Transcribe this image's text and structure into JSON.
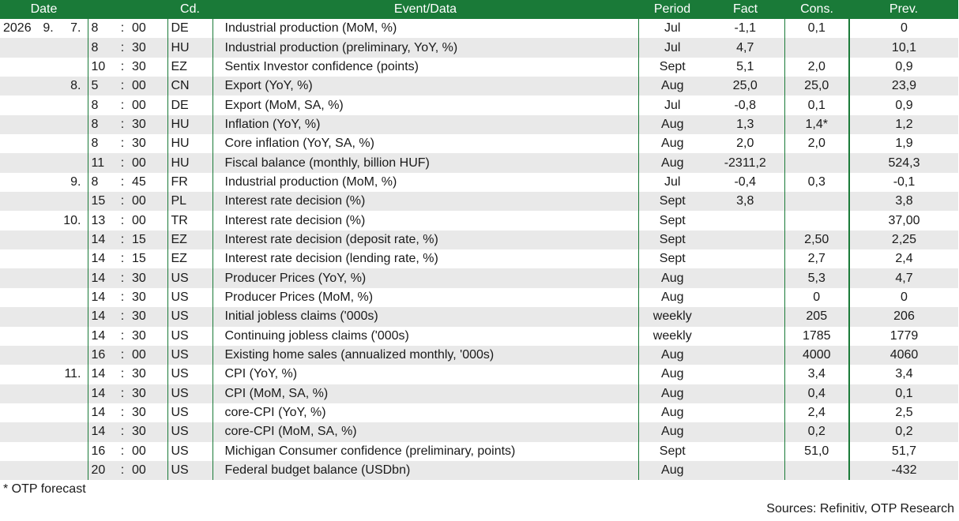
{
  "header": {
    "date": "Date",
    "cd": "Cd.",
    "event": "Event/Data",
    "period": "Period",
    "fact": "Fact",
    "cons": "Cons.",
    "prev": "Prev."
  },
  "rows": [
    {
      "year": "2026",
      "month": "9.",
      "day": "7.",
      "hour": "8",
      "sep": ":",
      "min": "00",
      "cd": "DE",
      "event": "Industrial production (MoM, %)",
      "period": "Jul",
      "fact": "-1,1",
      "cons": "0,1",
      "prev": "0"
    },
    {
      "year": "",
      "month": "",
      "day": "",
      "hour": "8",
      "sep": ":",
      "min": "30",
      "cd": "HU",
      "event": "Industrial production (preliminary, YoY, %)",
      "period": "Jul",
      "fact": "4,7",
      "cons": "",
      "prev": "10,1"
    },
    {
      "year": "",
      "month": "",
      "day": "",
      "hour": "10",
      "sep": ":",
      "min": "30",
      "cd": "EZ",
      "event": "Sentix Investor confidence (points)",
      "period": "Sept",
      "fact": "5,1",
      "cons": "2,0",
      "prev": "0,9"
    },
    {
      "year": "",
      "month": "",
      "day": "8.",
      "hour": "5",
      "sep": ":",
      "min": "00",
      "cd": "CN",
      "event": "Export (YoY, %)",
      "period": "Aug",
      "fact": "25,0",
      "cons": "25,0",
      "prev": "23,9"
    },
    {
      "year": "",
      "month": "",
      "day": "",
      "hour": "8",
      "sep": ":",
      "min": "00",
      "cd": "DE",
      "event": "Export (MoM, SA, %)",
      "period": "Jul",
      "fact": "-0,8",
      "cons": "0,1",
      "prev": "0,9"
    },
    {
      "year": "",
      "month": "",
      "day": "",
      "hour": "8",
      "sep": ":",
      "min": "30",
      "cd": "HU",
      "event": "Inflation (YoY, %)",
      "period": "Aug",
      "fact": "1,3",
      "cons": "1,4*",
      "prev": "1,2"
    },
    {
      "year": "",
      "month": "",
      "day": "",
      "hour": "8",
      "sep": ":",
      "min": "30",
      "cd": "HU",
      "event": "Core inflation (YoY, SA, %)",
      "period": "Aug",
      "fact": "2,0",
      "cons": "2,0",
      "prev": "1,9"
    },
    {
      "year": "",
      "month": "",
      "day": "",
      "hour": "11",
      "sep": ":",
      "min": "00",
      "cd": "HU",
      "event": "Fiscal balance (monthly, billion HUF)",
      "period": "Aug",
      "fact": "-2311,2",
      "cons": "",
      "prev": "524,3"
    },
    {
      "year": "",
      "month": "",
      "day": "9.",
      "hour": "8",
      "sep": ":",
      "min": "45",
      "cd": "FR",
      "event": "Industrial production (MoM, %)",
      "period": "Jul",
      "fact": "-0,4",
      "cons": "0,3",
      "prev": "-0,1"
    },
    {
      "year": "",
      "month": "",
      "day": "",
      "hour": "15",
      "sep": ":",
      "min": "00",
      "cd": "PL",
      "event": "Interest rate decision (%)",
      "period": "Sept",
      "fact": "3,8",
      "cons": "",
      "prev": "3,8"
    },
    {
      "year": "",
      "month": "",
      "day": "10.",
      "hour": "13",
      "sep": ":",
      "min": "00",
      "cd": "TR",
      "event": "Interest rate decision (%)",
      "period": "Sept",
      "fact": "",
      "cons": "",
      "prev": "37,00"
    },
    {
      "year": "",
      "month": "",
      "day": "",
      "hour": "14",
      "sep": ":",
      "min": "15",
      "cd": "EZ",
      "event": "Interest rate decision (deposit rate, %)",
      "period": "Sept",
      "fact": "",
      "cons": "2,50",
      "prev": "2,25"
    },
    {
      "year": "",
      "month": "",
      "day": "",
      "hour": "14",
      "sep": ":",
      "min": "15",
      "cd": "EZ",
      "event": "Interest rate decision (lending rate, %)",
      "period": "Sept",
      "fact": "",
      "cons": "2,7",
      "prev": "2,4"
    },
    {
      "year": "",
      "month": "",
      "day": "",
      "hour": "14",
      "sep": ":",
      "min": "30",
      "cd": "US",
      "event": "Producer Prices (YoY, %)",
      "period": "Aug",
      "fact": "",
      "cons": "5,3",
      "prev": "4,7"
    },
    {
      "year": "",
      "month": "",
      "day": "",
      "hour": "14",
      "sep": ":",
      "min": "30",
      "cd": "US",
      "event": "Producer Prices (MoM, %)",
      "period": "Aug",
      "fact": "",
      "cons": "0",
      "prev": "0"
    },
    {
      "year": "",
      "month": "",
      "day": "",
      "hour": "14",
      "sep": ":",
      "min": "30",
      "cd": "US",
      "event": "Initial jobless claims ('000s)",
      "period": "weekly",
      "fact": "",
      "cons": "205",
      "prev": "206"
    },
    {
      "year": "",
      "month": "",
      "day": "",
      "hour": "14",
      "sep": ":",
      "min": "30",
      "cd": "US",
      "event": "Continuing jobless claims ('000s)",
      "period": "weekly",
      "fact": "",
      "cons": "1785",
      "prev": "1779"
    },
    {
      "year": "",
      "month": "",
      "day": "",
      "hour": "16",
      "sep": ":",
      "min": "00",
      "cd": "US",
      "event": "Existing home sales (annualized monthly, '000s)",
      "period": "Aug",
      "fact": "",
      "cons": "4000",
      "prev": "4060"
    },
    {
      "year": "",
      "month": "",
      "day": "11.",
      "hour": "14",
      "sep": ":",
      "min": "30",
      "cd": "US",
      "event": "CPI (YoY, %)",
      "period": "Aug",
      "fact": "",
      "cons": "3,4",
      "prev": "3,4"
    },
    {
      "year": "",
      "month": "",
      "day": "",
      "hour": "14",
      "sep": ":",
      "min": "30",
      "cd": "US",
      "event": "CPI (MoM, SA, %)",
      "period": "Aug",
      "fact": "",
      "cons": "0,4",
      "prev": "0,1"
    },
    {
      "year": "",
      "month": "",
      "day": "",
      "hour": "14",
      "sep": ":",
      "min": "30",
      "cd": "US",
      "event": "core-CPI (YoY, %)",
      "period": "Aug",
      "fact": "",
      "cons": "2,4",
      "prev": "2,5"
    },
    {
      "year": "",
      "month": "",
      "day": "",
      "hour": "14",
      "sep": ":",
      "min": "30",
      "cd": "US",
      "event": "core-CPI (MoM, SA, %)",
      "period": "Aug",
      "fact": "",
      "cons": "0,2",
      "prev": "0,2"
    },
    {
      "year": "",
      "month": "",
      "day": "",
      "hour": "16",
      "sep": ":",
      "min": "00",
      "cd": "US",
      "event": "Michigan Consumer confidence (preliminary, points)",
      "period": "Sept",
      "fact": "",
      "cons": "51,0",
      "prev": "51,7"
    },
    {
      "year": "",
      "month": "",
      "day": "",
      "hour": "20",
      "sep": ":",
      "min": "00",
      "cd": "US",
      "event": "Federal budget balance (USDbn)",
      "period": "Aug",
      "fact": "",
      "cons": "",
      "prev": "-432"
    }
  ],
  "footnote": "* OTP forecast",
  "sources": "Sources: Refinitiv, OTP Research",
  "colors": {
    "header_bg": "#1a7a38",
    "header_text": "#ffffff",
    "stripe": "#e9e9e9"
  }
}
